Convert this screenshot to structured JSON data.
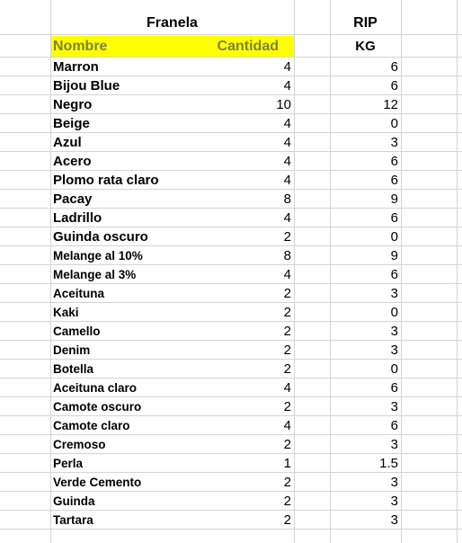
{
  "sheet": {
    "title": "Franela",
    "rip_label": "RIP",
    "headers": {
      "name": "Nombre",
      "qty": "Cantidad",
      "kg": "KG"
    },
    "header_highlight_color": "#ffff00",
    "rows": [
      {
        "name": "Marron",
        "qty": "4",
        "kg": "6"
      },
      {
        "name": "Bijou Blue",
        "qty": "4",
        "kg": "6"
      },
      {
        "name": "Negro",
        "qty": "10",
        "kg": "12"
      },
      {
        "name": "Beige",
        "qty": "4",
        "kg": "0"
      },
      {
        "name": "Azul",
        "qty": "4",
        "kg": "3"
      },
      {
        "name": "Acero",
        "qty": "4",
        "kg": "6"
      },
      {
        "name": "Plomo rata claro",
        "qty": "4",
        "kg": "6"
      },
      {
        "name": "Pacay",
        "qty": "8",
        "kg": "9"
      },
      {
        "name": "Ladrillo",
        "qty": "4",
        "kg": "6"
      },
      {
        "name": "Guinda oscuro",
        "qty": "2",
        "kg": "0"
      },
      {
        "name": "Melange al 10%",
        "qty": "8",
        "kg": "9"
      },
      {
        "name": "Melange al 3%",
        "qty": "4",
        "kg": "6"
      },
      {
        "name": "Aceituna",
        "qty": "2",
        "kg": "3"
      },
      {
        "name": "Kaki",
        "qty": "2",
        "kg": "0"
      },
      {
        "name": "Camello",
        "qty": "2",
        "kg": "3"
      },
      {
        "name": "Denim",
        "qty": "2",
        "kg": "3"
      },
      {
        "name": "Botella",
        "qty": "2",
        "kg": "0"
      },
      {
        "name": "Aceituna claro",
        "qty": "4",
        "kg": "6"
      },
      {
        "name": "Camote oscuro",
        "qty": "2",
        "kg": "3"
      },
      {
        "name": "Camote claro",
        "qty": "4",
        "kg": "6"
      },
      {
        "name": "Cremoso",
        "qty": "2",
        "kg": "3"
      },
      {
        "name": "Perla",
        "qty": "1",
        "kg": "1.5"
      },
      {
        "name": "Verde Cemento",
        "qty": "2",
        "kg": "3"
      },
      {
        "name": "Guinda",
        "qty": "2",
        "kg": "3"
      },
      {
        "name": "Tartara",
        "qty": "2",
        "kg": "3"
      }
    ]
  }
}
